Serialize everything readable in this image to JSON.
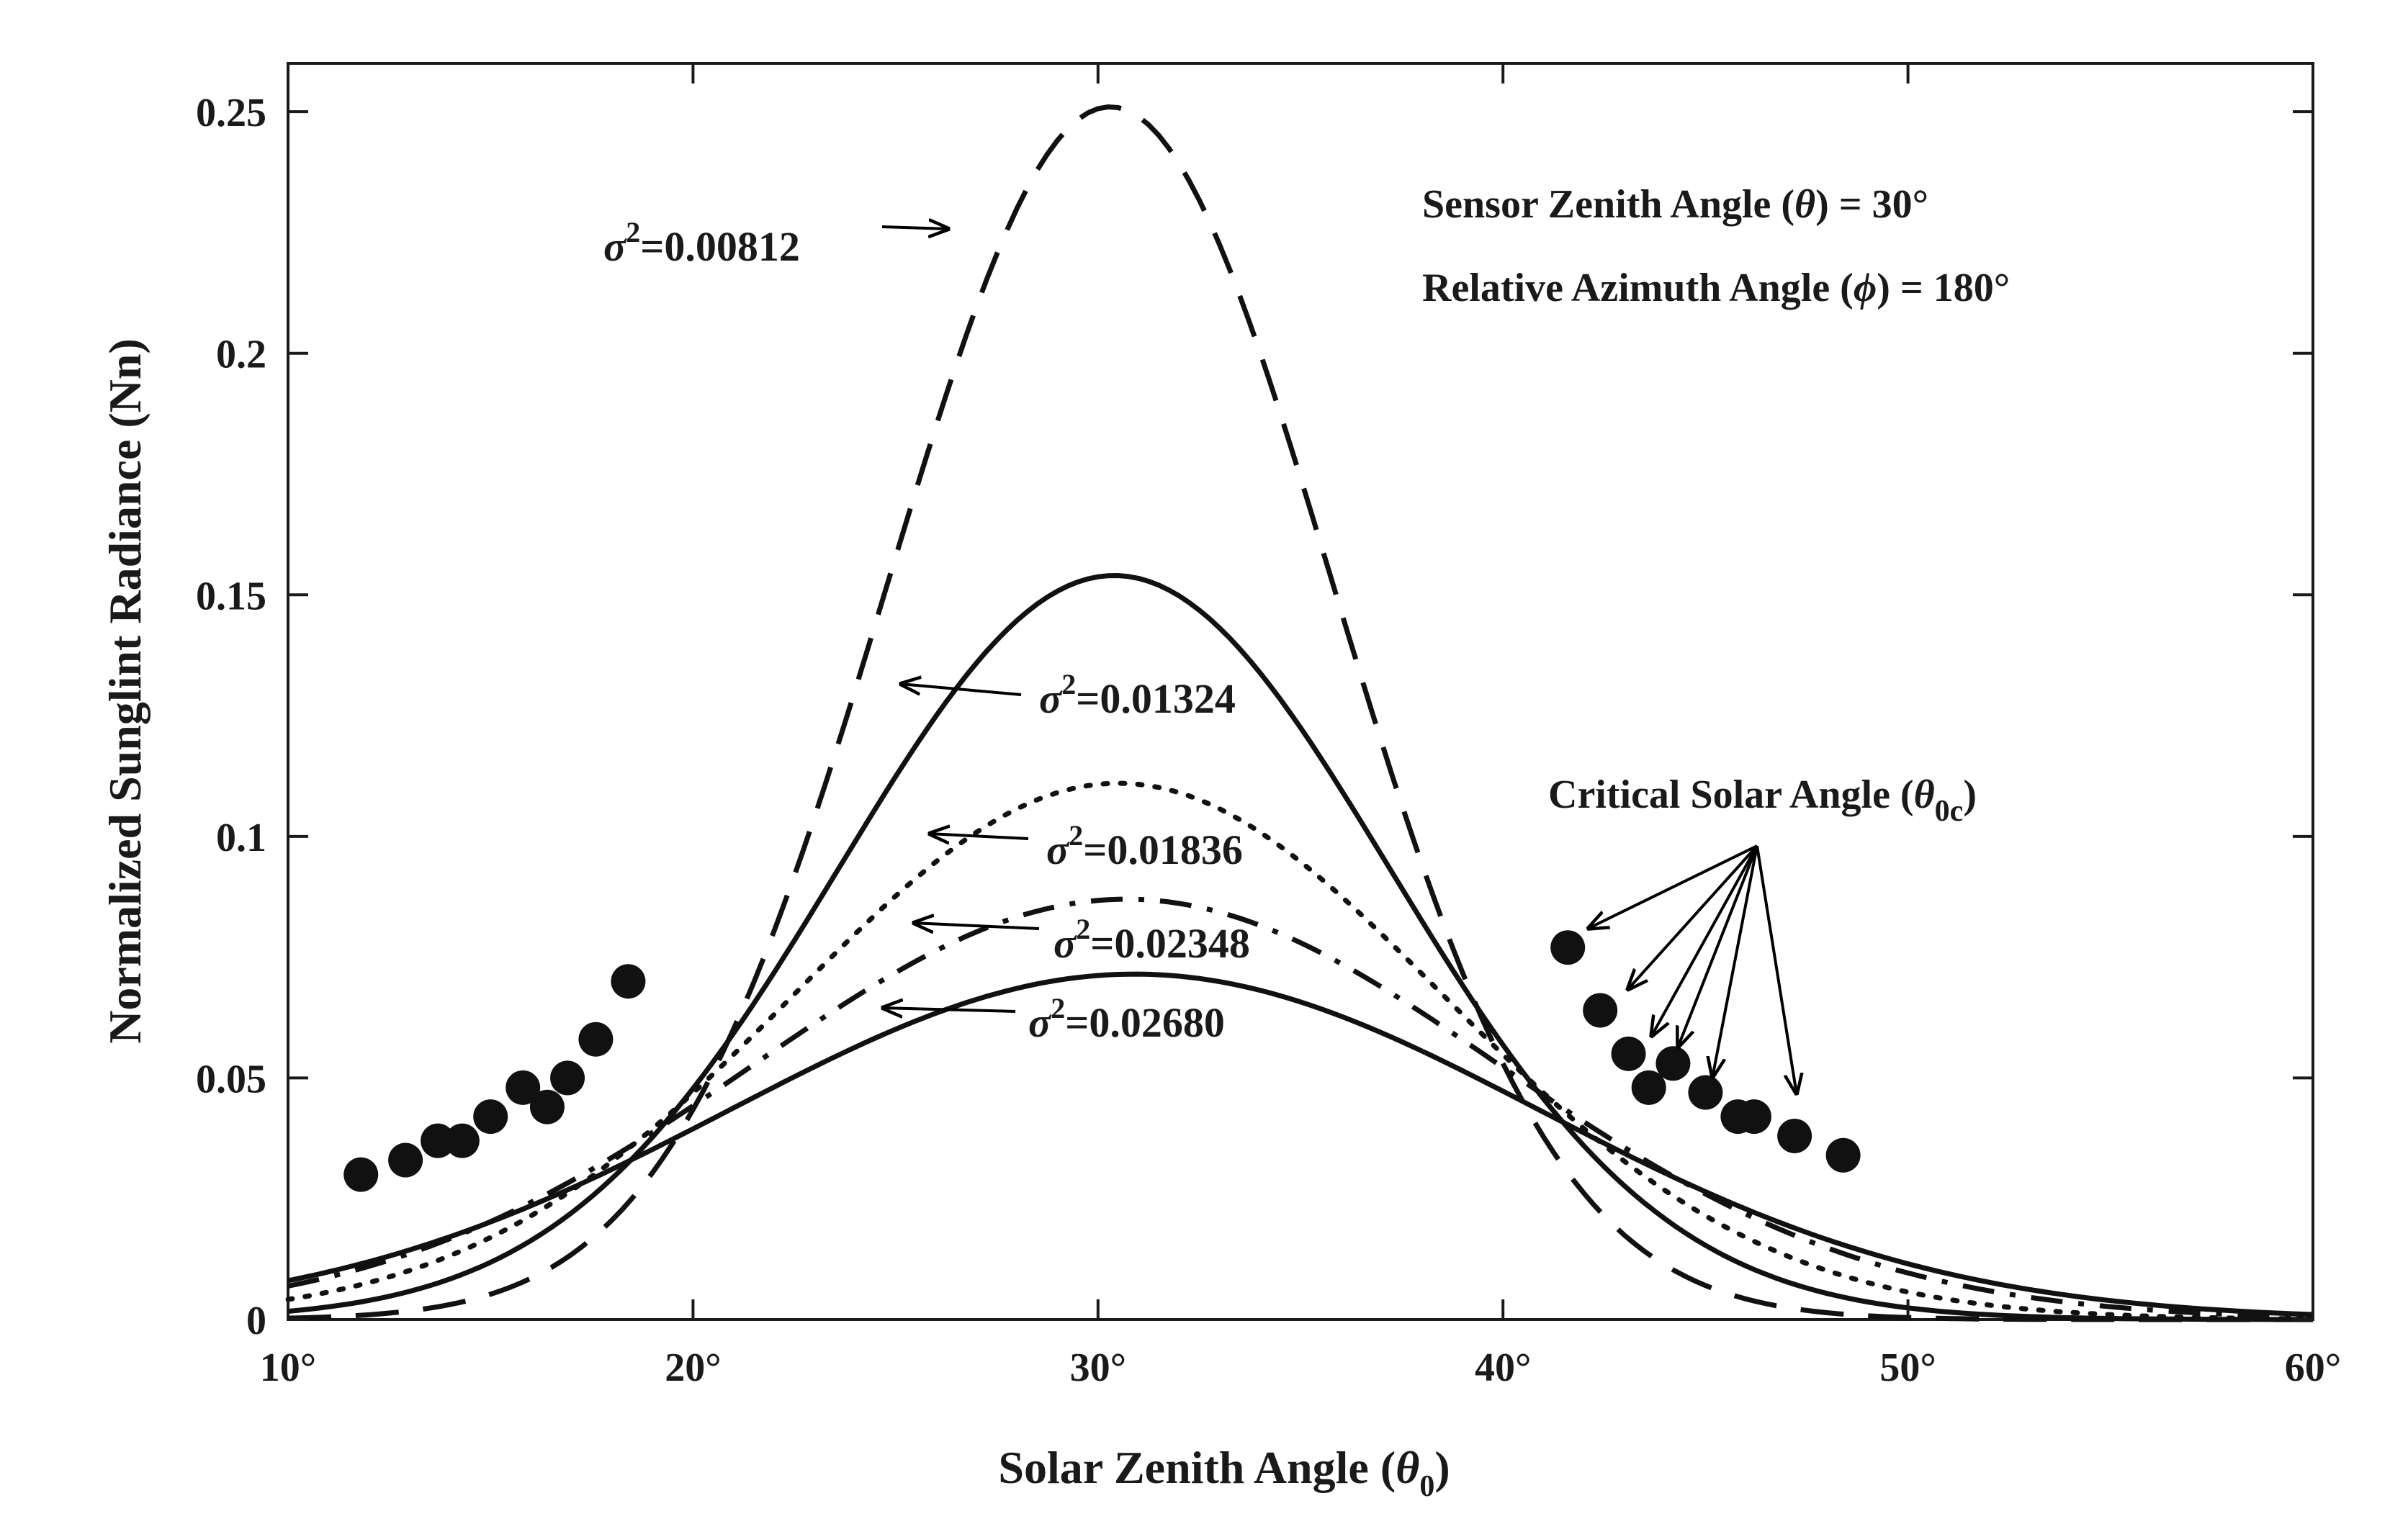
{
  "chart_data": {
    "type": "line",
    "title": "",
    "xlabel": {
      "main": "Solar Zenith Angle (",
      "symbol": "θ",
      "sub": "0",
      "close": ")"
    },
    "ylabel": "Normalized Sunglint Radiance (Nn)",
    "xlim": [
      10,
      60
    ],
    "ylim": [
      0,
      0.26
    ],
    "x_ticks": [
      {
        "value": 10,
        "label": "10°"
      },
      {
        "value": 20,
        "label": "20°"
      },
      {
        "value": 30,
        "label": "30°"
      },
      {
        "value": 40,
        "label": "40°"
      },
      {
        "value": 50,
        "label": "50°"
      },
      {
        "value": 60,
        "label": "60°"
      }
    ],
    "y_ticks": [
      {
        "value": 0,
        "label": "0"
      },
      {
        "value": 0.05,
        "label": "0.05"
      },
      {
        "value": 0.1,
        "label": "0.1"
      },
      {
        "value": 0.15,
        "label": "0.15"
      },
      {
        "value": 0.2,
        "label": "0.2"
      },
      {
        "value": 0.25,
        "label": "0.25"
      }
    ],
    "grid": false,
    "series": [
      {
        "name": "σ²=0.00812",
        "sigma_label": "σ",
        "exp": "2",
        "value_label": "=0.00812",
        "style": "dashed",
        "peak": 0.251,
        "peak_x": 30.3,
        "width": 5.5
      },
      {
        "name": "σ²=0.01324",
        "sigma_label": "σ",
        "exp": "2",
        "value_label": "=0.01324",
        "style": "solid",
        "peak": 0.154,
        "peak_x": 30.4,
        "width": 6.8
      },
      {
        "name": "σ²=0.01836",
        "sigma_label": "σ",
        "exp": "2",
        "value_label": "=0.01836",
        "style": "dotted",
        "peak": 0.111,
        "peak_x": 30.5,
        "width": 8.0
      },
      {
        "name": "σ²=0.02348",
        "sigma_label": "σ",
        "exp": "2",
        "value_label": "=0.02348",
        "style": "dashdot",
        "peak": 0.087,
        "peak_x": 30.7,
        "width": 9.2
      },
      {
        "name": "σ²=0.02680",
        "sigma_label": "σ",
        "exp": "2",
        "value_label": "=0.02680",
        "style": "solid",
        "peak": 0.0715,
        "peak_x": 30.9,
        "width": 10.0
      }
    ],
    "markers": [
      {
        "x": 11.8,
        "y": 0.03
      },
      {
        "x": 12.9,
        "y": 0.033
      },
      {
        "x": 13.7,
        "y": 0.037
      },
      {
        "x": 14.3,
        "y": 0.037
      },
      {
        "x": 15.0,
        "y": 0.042
      },
      {
        "x": 15.8,
        "y": 0.048
      },
      {
        "x": 16.4,
        "y": 0.044
      },
      {
        "x": 16.9,
        "y": 0.05
      },
      {
        "x": 17.6,
        "y": 0.058
      },
      {
        "x": 18.4,
        "y": 0.07
      },
      {
        "x": 41.6,
        "y": 0.077
      },
      {
        "x": 42.4,
        "y": 0.064
      },
      {
        "x": 43.1,
        "y": 0.055
      },
      {
        "x": 43.6,
        "y": 0.048
      },
      {
        "x": 44.2,
        "y": 0.053
      },
      {
        "x": 45.0,
        "y": 0.047
      },
      {
        "x": 45.8,
        "y": 0.042
      },
      {
        "x": 46.2,
        "y": 0.042
      },
      {
        "x": 47.2,
        "y": 0.038
      },
      {
        "x": 48.4,
        "y": 0.034
      }
    ],
    "annotations": {
      "sensor": {
        "main": "Sensor Zenith Angle (",
        "symbol": "θ",
        "close": ") = 30°"
      },
      "azimuth": {
        "main": "Relative Azimuth Angle (",
        "symbol": "ϕ",
        "close": ") = 180°"
      },
      "critical": {
        "main": "Critical Solar Angle (",
        "symbol": "θ",
        "sub": "0c",
        "close": ")"
      }
    }
  }
}
